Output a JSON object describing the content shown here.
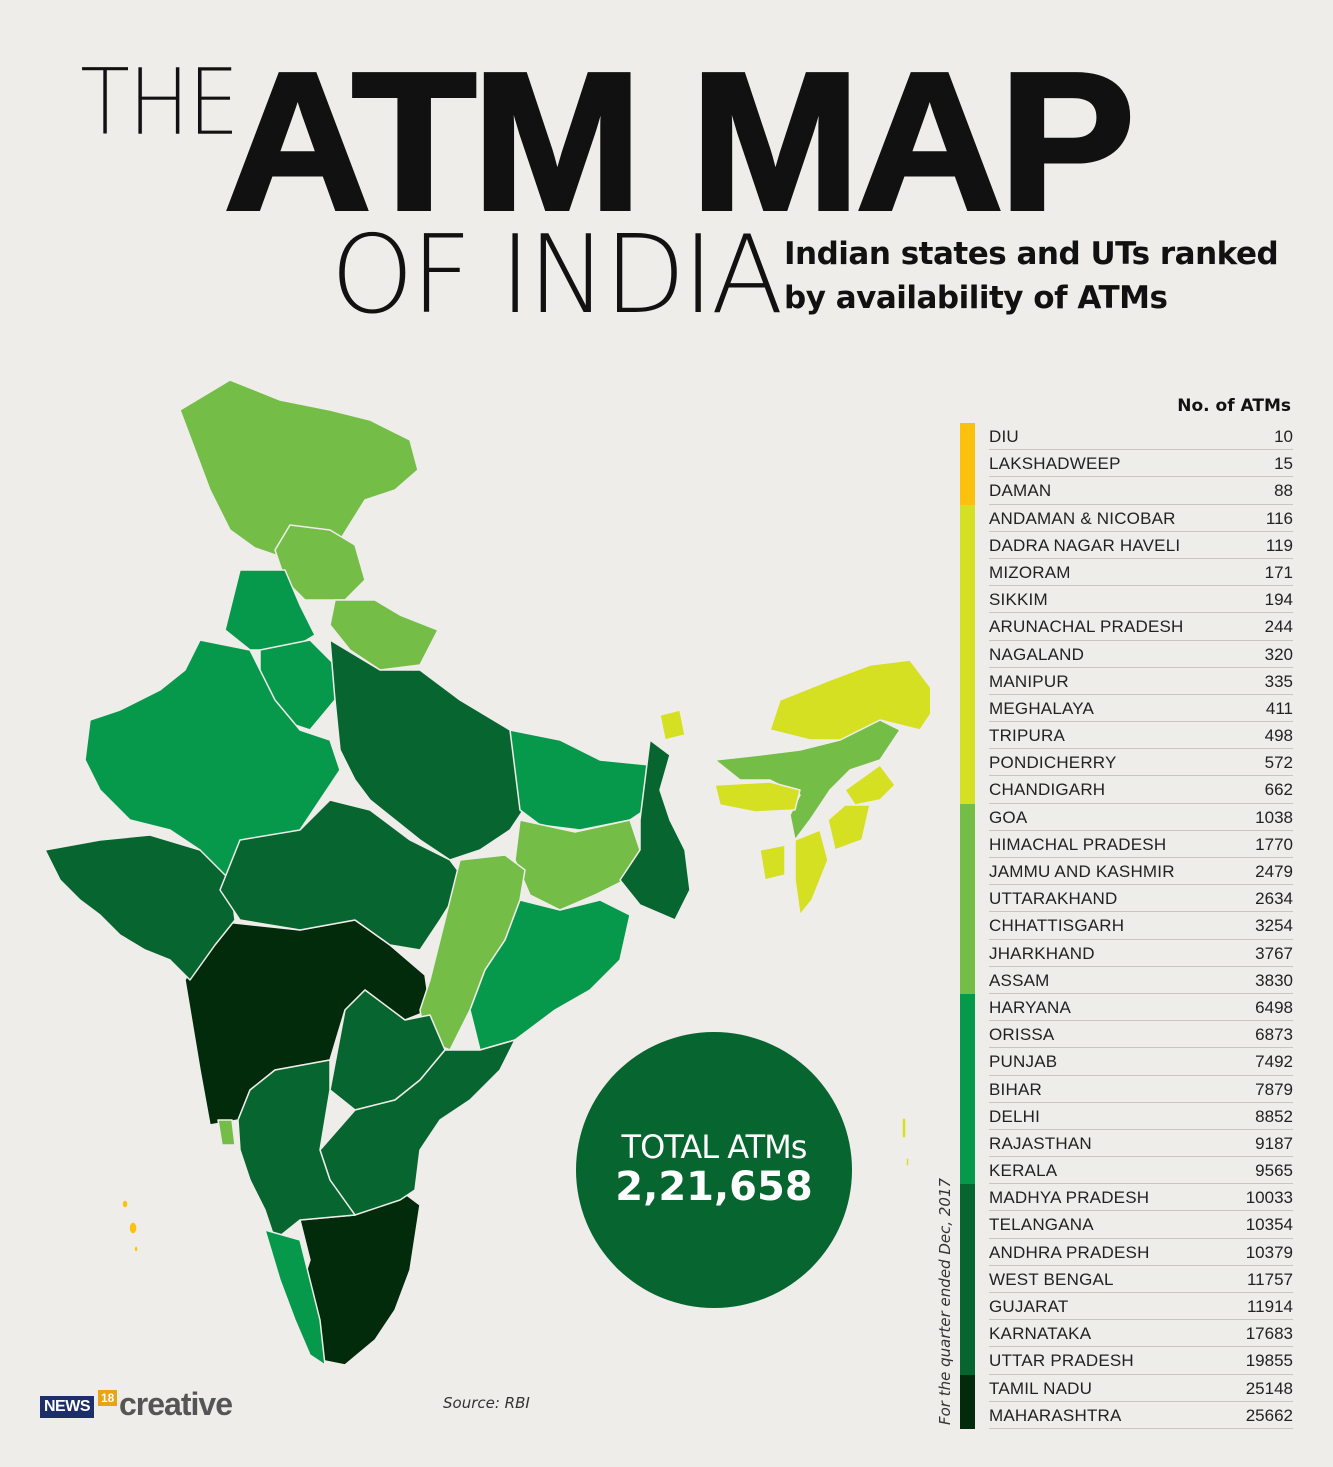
{
  "title": {
    "the": "THE",
    "main": "ATM MAP",
    "of": "OF INDIA",
    "subtitle_line1": "Indian states and UTs ranked",
    "subtitle_line2": "by availability of ATMs"
  },
  "total": {
    "label": "TOTAL ATMs",
    "value": "2,21,658"
  },
  "footnote": "For the quarter ended Dec, 2017",
  "source": "Source: RBI",
  "logo": {
    "news": "NEWS",
    "num": "18",
    "creative": "creative"
  },
  "colors": {
    "tier1": "#fcc10d",
    "tier2": "#d4e021",
    "tier3": "#74bd47",
    "tier4": "#07994b",
    "tier5": "#07652f",
    "tier6": "#012b0b",
    "background": "#efedea"
  },
  "chart_data": {
    "type": "table",
    "column_header": "No. of ATMs",
    "rows": [
      {
        "name": "DIU",
        "value": 10,
        "tier": 1
      },
      {
        "name": "LAKSHADWEEP",
        "value": 15,
        "tier": 1
      },
      {
        "name": "DAMAN",
        "value": 88,
        "tier": 1
      },
      {
        "name": "ANDAMAN & NICOBAR",
        "value": 116,
        "tier": 2
      },
      {
        "name": "DADRA NAGAR HAVELI",
        "value": 119,
        "tier": 2
      },
      {
        "name": "MIZORAM",
        "value": 171,
        "tier": 2
      },
      {
        "name": "SIKKIM",
        "value": 194,
        "tier": 2
      },
      {
        "name": "ARUNACHAL PRADESH",
        "value": 244,
        "tier": 2
      },
      {
        "name": "NAGALAND",
        "value": 320,
        "tier": 2
      },
      {
        "name": "MANIPUR",
        "value": 335,
        "tier": 2
      },
      {
        "name": "MEGHALAYA",
        "value": 411,
        "tier": 2
      },
      {
        "name": "TRIPURA",
        "value": 498,
        "tier": 2
      },
      {
        "name": "PONDICHERRY",
        "value": 572,
        "tier": 2
      },
      {
        "name": "CHANDIGARH",
        "value": 662,
        "tier": 2
      },
      {
        "name": "GOA",
        "value": 1038,
        "tier": 3
      },
      {
        "name": "HIMACHAL PRADESH",
        "value": 1770,
        "tier": 3
      },
      {
        "name": "JAMMU AND KASHMIR",
        "value": 2479,
        "tier": 3
      },
      {
        "name": "UTTARAKHAND",
        "value": 2634,
        "tier": 3
      },
      {
        "name": "CHHATTISGARH",
        "value": 3254,
        "tier": 3
      },
      {
        "name": "JHARKHAND",
        "value": 3767,
        "tier": 3
      },
      {
        "name": "ASSAM",
        "value": 3830,
        "tier": 3
      },
      {
        "name": "HARYANA",
        "value": 6498,
        "tier": 4
      },
      {
        "name": "ORISSA",
        "value": 6873,
        "tier": 4
      },
      {
        "name": "PUNJAB",
        "value": 7492,
        "tier": 4
      },
      {
        "name": "BIHAR",
        "value": 7879,
        "tier": 4
      },
      {
        "name": "DELHI",
        "value": 8852,
        "tier": 4
      },
      {
        "name": "RAJASTHAN",
        "value": 9187,
        "tier": 4
      },
      {
        "name": "KERALA",
        "value": 9565,
        "tier": 4
      },
      {
        "name": "MADHYA PRADESH",
        "value": 10033,
        "tier": 5
      },
      {
        "name": "TELANGANA",
        "value": 10354,
        "tier": 5
      },
      {
        "name": "ANDHRA PRADESH",
        "value": 10379,
        "tier": 5
      },
      {
        "name": "WEST BENGAL",
        "value": 11757,
        "tier": 5
      },
      {
        "name": "GUJARAT",
        "value": 11914,
        "tier": 5
      },
      {
        "name": "KARNATAKA",
        "value": 17683,
        "tier": 5
      },
      {
        "name": "UTTAR PRADESH",
        "value": 19855,
        "tier": 5
      },
      {
        "name": "TAMIL NADU",
        "value": 25148,
        "tier": 6
      },
      {
        "name": "MAHARASHTRA",
        "value": 25662,
        "tier": 6
      }
    ]
  }
}
